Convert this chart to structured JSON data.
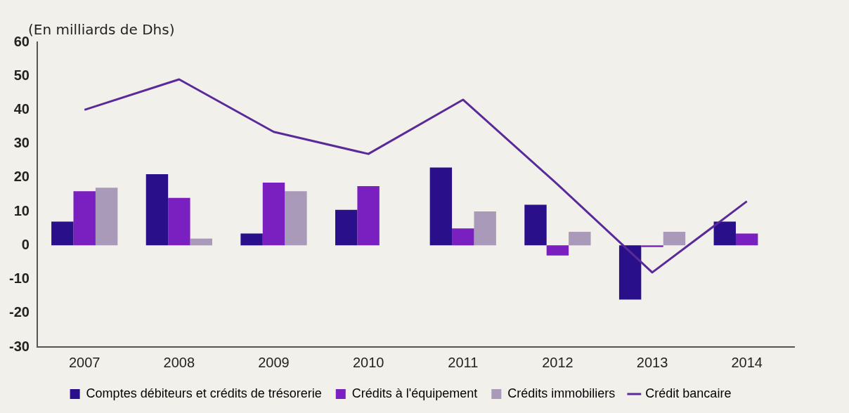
{
  "chart_data": {
    "type": "bar",
    "ylabel": "(En milliards de Dhs)",
    "categories": [
      "2007",
      "2008",
      "2009",
      "2010",
      "2011",
      "2012",
      "2013",
      "2014"
    ],
    "series": [
      {
        "name": "Comptes débiteurs et crédits de trésorerie",
        "color": "#2a0f8a",
        "values": [
          7,
          21,
          3.5,
          10.5,
          23,
          12,
          -16,
          7
        ]
      },
      {
        "name": "Crédits à l'équipement",
        "color": "#7a1fc0",
        "values": [
          16,
          14,
          18.5,
          17.5,
          5,
          -3,
          -0.5,
          3.5
        ]
      },
      {
        "name": "Crédits immobiliers",
        "color": "#a89ab8",
        "values": [
          17,
          2,
          16,
          0,
          10,
          4,
          4,
          0
        ]
      },
      {
        "name": "Crédit bancaire",
        "type": "line",
        "color": "#5a2a9a",
        "values": [
          40,
          49,
          33.5,
          27,
          43,
          18,
          -8,
          13
        ]
      }
    ],
    "ylim": [
      -30,
      60
    ],
    "yticks": [
      -30,
      -20,
      -10,
      0,
      10,
      20,
      30,
      40,
      50,
      60
    ],
    "grid": false,
    "legend": "bottom",
    "marker": "none"
  }
}
